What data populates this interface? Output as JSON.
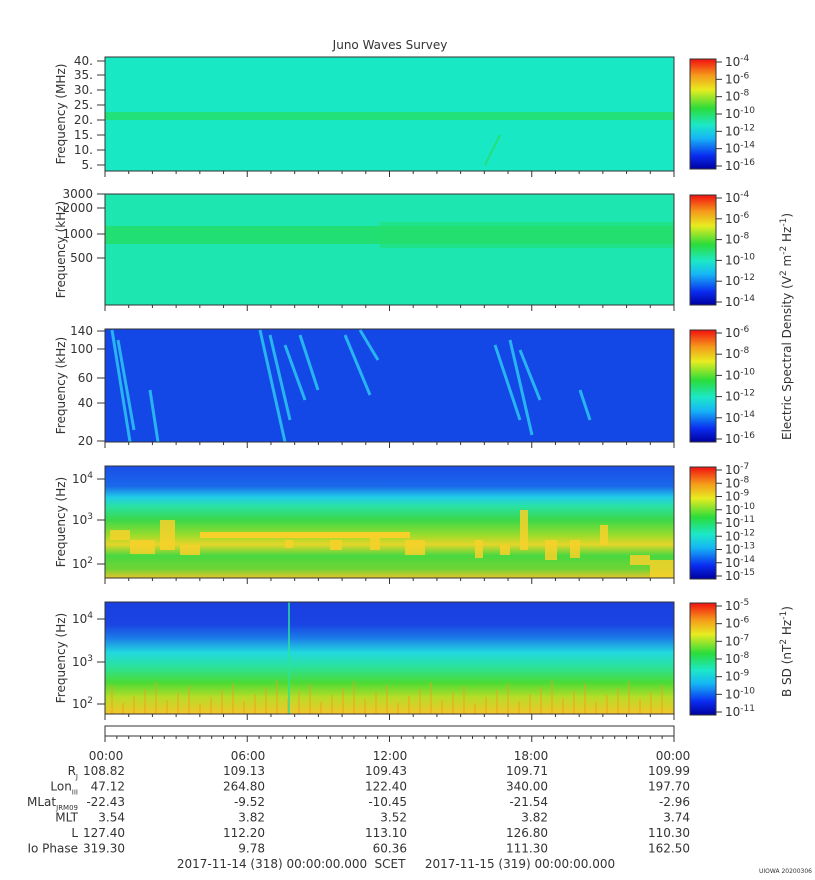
{
  "title": "Juno Waves Survey",
  "colors": {
    "panel1_bg": "#19e8c4",
    "panel1_band": "#22e07a",
    "panel2_bg": "#1ee6b0",
    "panel2_band": "#22de6e",
    "panel3_bg": "#1448e6",
    "panel3_streak": "#2fd7f5",
    "panel4_top": "#1a4ee8",
    "panel4_mid": "#25e6b5",
    "panel4_low": "#39d83f",
    "panel4_hot": "#f7d12a",
    "panel5_top": "#1a3fe0",
    "panel5_mid": "#22d8e0",
    "panel5_low": "#4bdb35",
    "panel5_bottom": "#f3c52a"
  },
  "chart_data": [
    {
      "type": "heatmap",
      "ylabel": "Frequency (MHz)",
      "yticks": [
        "40.",
        "35.",
        "30.",
        "25.",
        "20.",
        "15.",
        "10.",
        "5."
      ],
      "colorbar_ticks": [
        "10^-4",
        "10^-6",
        "10^-8",
        "10^-10",
        "10^-12",
        "10^-14",
        "10^-16"
      ]
    },
    {
      "type": "heatmap",
      "ylabel": "Frequency (kHz)",
      "yticks": [
        "3000",
        "2000",
        "1000",
        "500"
      ],
      "colorbar_ticks": [
        "10^-4",
        "10^-6",
        "10^-8",
        "10^-10",
        "10^-12",
        "10^-14"
      ]
    },
    {
      "type": "heatmap",
      "ylabel": "Frequency (kHz)",
      "yticks": [
        "140",
        "100",
        "60",
        "40",
        "20"
      ],
      "colorbar_ticks": [
        "10^-6",
        "10^-8",
        "10^-10",
        "10^-12",
        "10^-14",
        "10^-16"
      ]
    },
    {
      "type": "heatmap",
      "ylabel": "Frequency (Hz)",
      "yticks": [
        "10^4",
        "10^3",
        "10^2"
      ],
      "colorbar_ticks": [
        "10^-7",
        "10^-8",
        "10^-9",
        "10^-10",
        "10^-11",
        "10^-12",
        "10^-13",
        "10^-14",
        "10^-15"
      ]
    },
    {
      "type": "heatmap",
      "ylabel": "Frequency (Hz)",
      "yticks": [
        "10^4",
        "10^3",
        "10^2"
      ],
      "colorbar_ticks": [
        "10^-5",
        "10^-6",
        "10^-7",
        "10^-8",
        "10^-9",
        "10^-10",
        "10^-11"
      ]
    }
  ],
  "colorbar_label_e": "Electric Spectral Density (V^2 m^-2 Hz^-1)",
  "colorbar_label_b": "B SD (nT^2 Hz^-1)",
  "time_axis": {
    "ticks": [
      "00:00",
      "06:00",
      "12:00",
      "18:00",
      "00:00"
    ],
    "rows": [
      {
        "label": "R_J",
        "values": [
          "108.82",
          "109.13",
          "109.43",
          "109.71",
          "109.99"
        ]
      },
      {
        "label": "Lon_III",
        "values": [
          "47.12",
          "264.80",
          "122.40",
          "340.00",
          "197.70"
        ]
      },
      {
        "label": "MLat_JRM09",
        "values": [
          "-22.43",
          "-9.52",
          "-10.45",
          "-21.54",
          "-2.96"
        ]
      },
      {
        "label": "MLT",
        "values": [
          "3.54",
          "3.82",
          "3.52",
          "3.82",
          "3.74"
        ]
      },
      {
        "label": "L",
        "values": [
          "127.40",
          "112.20",
          "113.10",
          "126.80",
          "110.30"
        ]
      },
      {
        "label": "Io Phase",
        "values": [
          "319.30",
          "9.78",
          "60.36",
          "111.30",
          "162.50"
        ]
      }
    ],
    "start": "2017-11-14 (318) 00:00:00.000",
    "scet": "SCET",
    "end": "2017-11-15 (319) 00:00:00.000"
  },
  "credit": "UIOWA 20200306"
}
